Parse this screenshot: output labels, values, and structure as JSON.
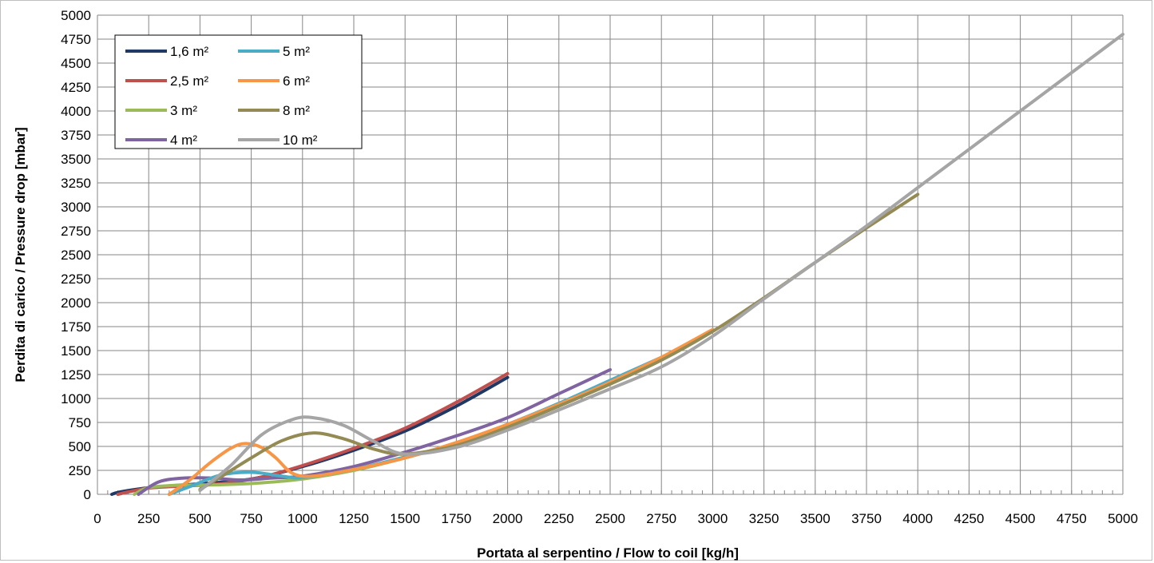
{
  "chart_data": {
    "type": "line",
    "title": "",
    "xlabel": "Portata al serpentino / Flow to coil [kg/h]",
    "ylabel": "Perdita di carico / Pressure drop [mbar]",
    "xlim": [
      0,
      5000
    ],
    "ylim": [
      0,
      5000
    ],
    "x_ticks": [
      0,
      250,
      500,
      750,
      1000,
      1250,
      1500,
      1750,
      2000,
      2250,
      2500,
      2750,
      3000,
      3250,
      3500,
      3750,
      4000,
      4250,
      4500,
      4750,
      5000
    ],
    "y_ticks": [
      0,
      250,
      500,
      750,
      1000,
      1250,
      1500,
      1750,
      2000,
      2250,
      2500,
      2750,
      3000,
      3250,
      3500,
      3750,
      4000,
      4250,
      4500,
      4750,
      5000
    ],
    "grid": true,
    "legend_position": "top-left",
    "series": [
      {
        "name": "1,6 m²",
        "color": "#1f3864",
        "points": [
          [
            70,
            0
          ],
          [
            100,
            20
          ],
          [
            200,
            55
          ],
          [
            300,
            80
          ],
          [
            500,
            110
          ],
          [
            750,
            160
          ],
          [
            1000,
            290
          ],
          [
            1250,
            460
          ],
          [
            1500,
            660
          ],
          [
            1750,
            920
          ],
          [
            2000,
            1220
          ]
        ]
      },
      {
        "name": "2,5 m²",
        "color": "#c0504d",
        "points": [
          [
            100,
            0
          ],
          [
            150,
            25
          ],
          [
            250,
            65
          ],
          [
            400,
            85
          ],
          [
            600,
            110
          ],
          [
            800,
            180
          ],
          [
            1000,
            300
          ],
          [
            1250,
            480
          ],
          [
            1500,
            690
          ],
          [
            1750,
            960
          ],
          [
            2000,
            1260
          ]
        ]
      },
      {
        "name": "3 m²",
        "color": "#9bbb59",
        "points": [
          [
            180,
            0
          ],
          [
            250,
            70
          ],
          [
            400,
            95
          ],
          [
            600,
            100
          ],
          [
            800,
            120
          ],
          [
            1000,
            160
          ],
          [
            1250,
            250
          ],
          [
            1500,
            380
          ],
          [
            1750,
            530
          ],
          [
            2000,
            700
          ]
        ]
      },
      {
        "name": "4 m²",
        "color": "#8064a2",
        "points": [
          [
            200,
            0
          ],
          [
            300,
            130
          ],
          [
            420,
            170
          ],
          [
            550,
            170
          ],
          [
            700,
            150
          ],
          [
            850,
            170
          ],
          [
            1000,
            190
          ],
          [
            1250,
            290
          ],
          [
            1500,
            440
          ],
          [
            1750,
            610
          ],
          [
            2000,
            800
          ],
          [
            2250,
            1050
          ],
          [
            2500,
            1300
          ]
        ]
      },
      {
        "name": "5 m²",
        "color": "#4bacc6",
        "points": [
          [
            350,
            0
          ],
          [
            450,
            80
          ],
          [
            600,
            200
          ],
          [
            750,
            230
          ],
          [
            900,
            190
          ],
          [
            1000,
            175
          ],
          [
            1250,
            260
          ],
          [
            1500,
            390
          ],
          [
            1750,
            530
          ],
          [
            2000,
            730
          ],
          [
            2250,
            950
          ],
          [
            2500,
            1190
          ],
          [
            2750,
            1430
          ]
        ]
      },
      {
        "name": "6 m²",
        "color": "#f79646",
        "points": [
          [
            350,
            0
          ],
          [
            450,
            150
          ],
          [
            550,
            330
          ],
          [
            650,
            480
          ],
          [
            720,
            530
          ],
          [
            800,
            490
          ],
          [
            870,
            380
          ],
          [
            950,
            220
          ],
          [
            1050,
            190
          ],
          [
            1250,
            260
          ],
          [
            1500,
            380
          ],
          [
            1750,
            540
          ],
          [
            2000,
            730
          ],
          [
            2250,
            940
          ],
          [
            2500,
            1170
          ],
          [
            2750,
            1430
          ],
          [
            3000,
            1720
          ]
        ]
      },
      {
        "name": "8 m²",
        "color": "#948a54",
        "points": [
          [
            500,
            50
          ],
          [
            600,
            180
          ],
          [
            750,
            380
          ],
          [
            900,
            560
          ],
          [
            1050,
            640
          ],
          [
            1200,
            580
          ],
          [
            1350,
            470
          ],
          [
            1500,
            420
          ],
          [
            1750,
            510
          ],
          [
            2000,
            700
          ],
          [
            2250,
            920
          ],
          [
            2500,
            1150
          ],
          [
            2750,
            1400
          ],
          [
            3000,
            1700
          ],
          [
            3250,
            2050
          ],
          [
            3500,
            2420
          ],
          [
            3750,
            2780
          ],
          [
            4000,
            3130
          ]
        ]
      },
      {
        "name": "10 m²",
        "color": "#a5a5a5",
        "points": [
          [
            500,
            40
          ],
          [
            650,
            300
          ],
          [
            800,
            620
          ],
          [
            950,
            780
          ],
          [
            1050,
            800
          ],
          [
            1200,
            720
          ],
          [
            1350,
            550
          ],
          [
            1500,
            420
          ],
          [
            1750,
            490
          ],
          [
            2000,
            670
          ],
          [
            2250,
            880
          ],
          [
            2500,
            1100
          ],
          [
            2750,
            1330
          ],
          [
            3000,
            1650
          ],
          [
            3250,
            2040
          ],
          [
            3500,
            2420
          ],
          [
            3750,
            2800
          ],
          [
            4000,
            3200
          ],
          [
            4250,
            3600
          ],
          [
            4500,
            4000
          ],
          [
            4750,
            4400
          ],
          [
            5000,
            4800
          ]
        ]
      }
    ]
  }
}
